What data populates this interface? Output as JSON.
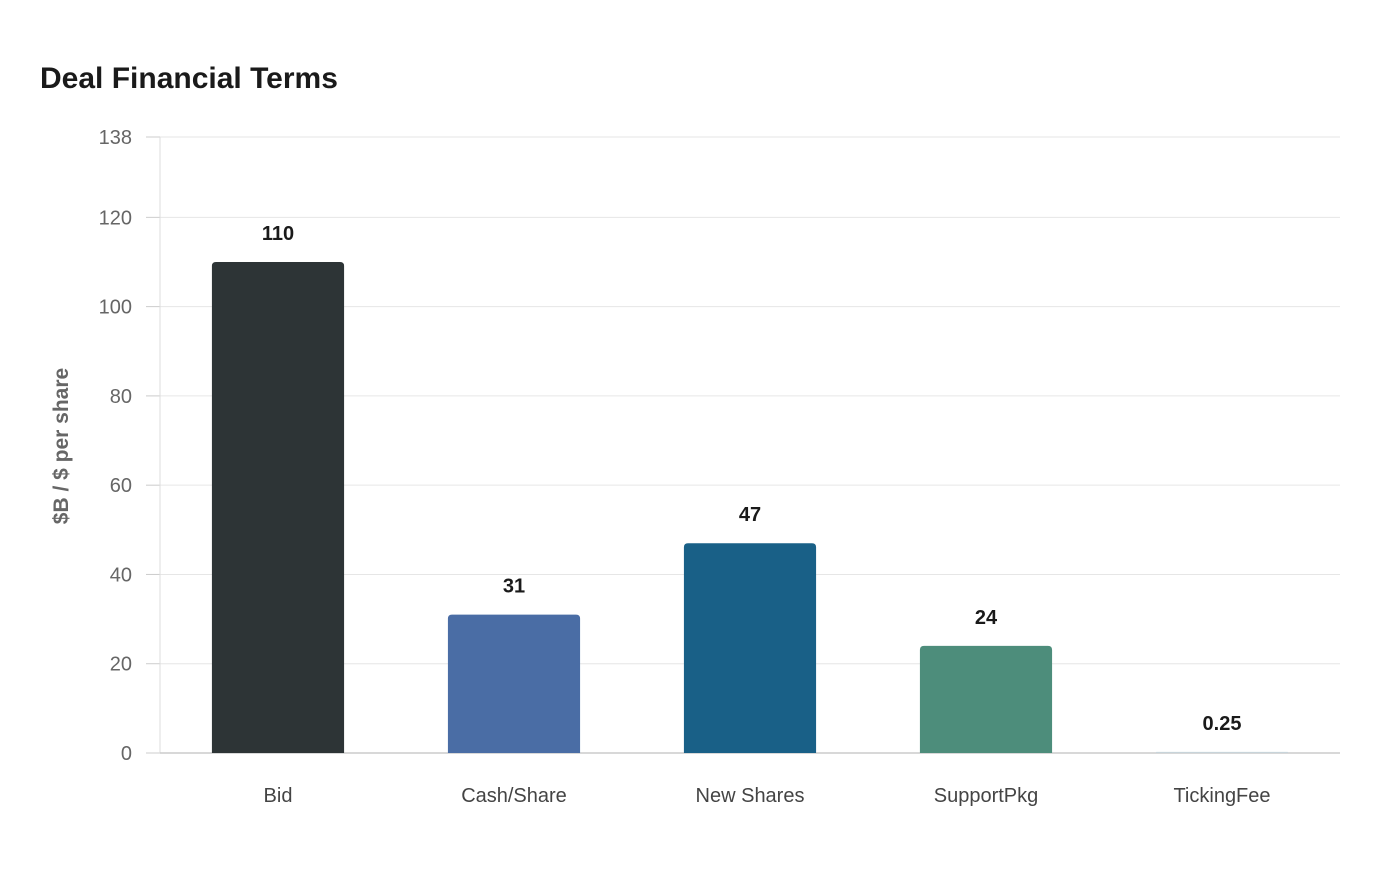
{
  "chart_data": {
    "type": "bar",
    "title": "Deal Financial Terms",
    "xlabel": "",
    "ylabel": "$B / $ per share",
    "categories": [
      "Bid",
      "Cash/Share",
      "New Shares",
      "SupportPkg",
      "TickingFee"
    ],
    "values": [
      110,
      31,
      47,
      24,
      0.25
    ],
    "value_labels": [
      "110",
      "31",
      "47",
      "24",
      "0.25"
    ],
    "colors": [
      "#2d3436",
      "#4a6da5",
      "#196087",
      "#4d8d7b",
      "#c8d4da"
    ],
    "ylim": [
      0,
      138
    ],
    "yticks": [
      0,
      20,
      40,
      60,
      80,
      100,
      120,
      138
    ],
    "grid": true,
    "legend": "none"
  }
}
